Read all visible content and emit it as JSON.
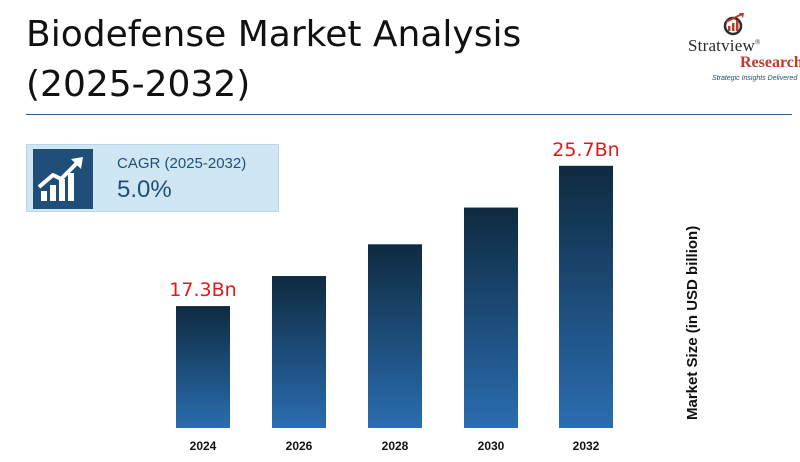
{
  "header": {
    "title": "Biodefense Market Analysis (2025-2032)"
  },
  "logo": {
    "name": "Stratview",
    "registered": "®",
    "sub": "Research",
    "tagline": "Strategic Insights Delivered",
    "icon": "magnifier-arrow-icon"
  },
  "cagr": {
    "label": "CAGR (2025-2032)",
    "value": "5.0%",
    "icon": "growth-chart-icon"
  },
  "colors": {
    "bar_top": "#0e2a3f",
    "bar_bottom": "#2a6db0",
    "value_label": "#e01919",
    "accent": "#1f4e79"
  },
  "chart_data": {
    "type": "bar",
    "categories": [
      "2024",
      "2026",
      "2028",
      "2030",
      "2032"
    ],
    "values": [
      17.3,
      19.1,
      21.0,
      23.2,
      25.7
    ],
    "value_labels": [
      "17.3Bn",
      "",
      "",
      "",
      "25.7Bn"
    ],
    "ylabel": "Market Size (in USD billion)",
    "xlabel": "",
    "ylim": [
      0,
      28
    ],
    "grid": false,
    "legend": "none"
  }
}
